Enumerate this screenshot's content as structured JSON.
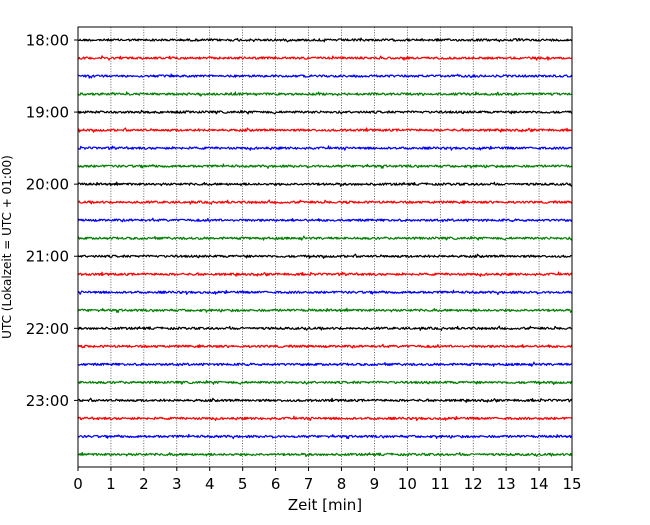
{
  "chart_data": {
    "type": "line",
    "description_type": "helicorder seismogram traces",
    "xlabel": "Zeit  [min]",
    "ylabel": "UTC (Lokalzeit = UTC + 01:00)",
    "xlim": [
      0,
      15
    ],
    "x_ticks": [
      "0",
      "1",
      "2",
      "3",
      "4",
      "5",
      "6",
      "7",
      "8",
      "9",
      "10",
      "11",
      "12",
      "13",
      "14",
      "15"
    ],
    "y_tick_labels": [
      "18:00",
      "19:00",
      "20:00",
      "21:00",
      "22:00",
      "23:00"
    ],
    "y_tick_hours": [
      18,
      19,
      20,
      21,
      22,
      23
    ],
    "trace_interval_min": 15,
    "trace_start": "18:00",
    "trace_count": 24,
    "trace_colors": [
      "#000000",
      "#ff0000",
      "#0000ff",
      "#008000"
    ],
    "vertical_grid": "dotted at every minute"
  }
}
